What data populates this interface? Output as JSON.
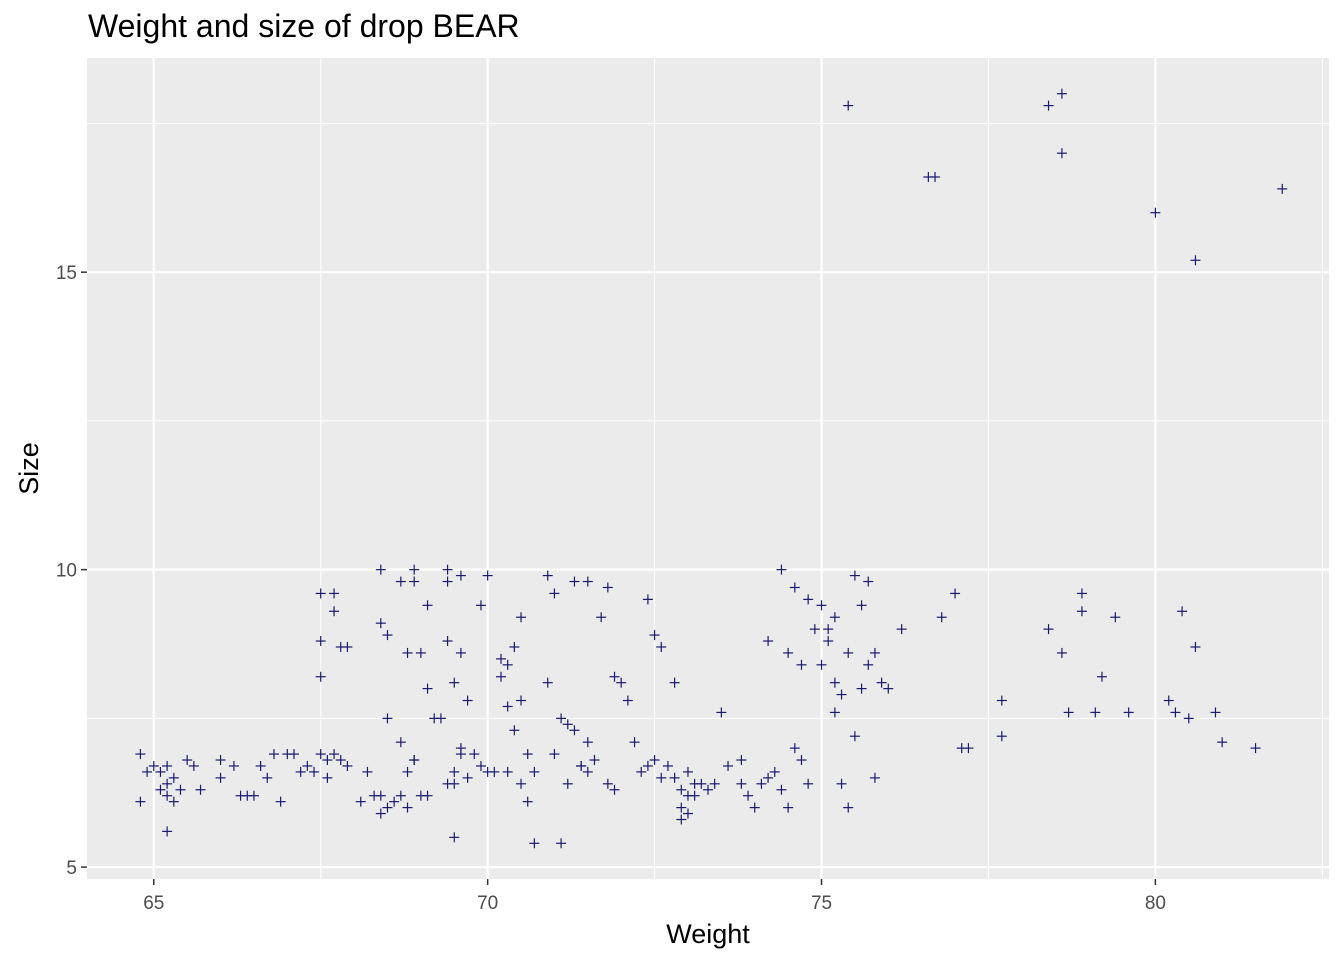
{
  "chart_data": {
    "type": "scatter",
    "title": "Weight and size of drop BEAR",
    "xlabel": "Weight",
    "ylabel": "Size",
    "xlim": [
      64.0,
      82.6
    ],
    "ylim": [
      4.8,
      18.6
    ],
    "xticks": [
      65,
      70,
      75,
      80
    ],
    "yticks": [
      5,
      10,
      15
    ],
    "xtick_labels": [
      "65",
      "70",
      "75",
      "80"
    ],
    "ytick_labels": [
      "5",
      "10",
      "15"
    ],
    "grid": true,
    "marker": "plus",
    "colors": {
      "panel": "#ebebeb",
      "grid": "#ffffff",
      "point": "#1a1a6e",
      "tick": "#4d4d4d"
    },
    "series": [
      {
        "points": [
          [
            64.8,
            6.9
          ],
          [
            64.9,
            6.6
          ],
          [
            65.0,
            6.7
          ],
          [
            65.1,
            6.3
          ],
          [
            64.8,
            6.1
          ],
          [
            65.2,
            6.7
          ],
          [
            65.3,
            6.5
          ],
          [
            65.2,
            6.4
          ],
          [
            65.4,
            6.3
          ],
          [
            65.2,
            6.2
          ],
          [
            65.5,
            6.8
          ],
          [
            65.3,
            6.1
          ],
          [
            65.6,
            6.7
          ],
          [
            65.7,
            6.3
          ],
          [
            65.1,
            6.6
          ],
          [
            65.2,
            5.6
          ],
          [
            66.0,
            6.8
          ],
          [
            66.2,
            6.7
          ],
          [
            66.0,
            6.5
          ],
          [
            66.3,
            6.2
          ],
          [
            66.4,
            6.2
          ],
          [
            66.5,
            6.2
          ],
          [
            66.6,
            6.7
          ],
          [
            66.7,
            6.5
          ],
          [
            66.8,
            6.9
          ],
          [
            66.9,
            6.1
          ],
          [
            67.0,
            6.9
          ],
          [
            67.1,
            6.9
          ],
          [
            67.2,
            6.6
          ],
          [
            67.3,
            6.7
          ],
          [
            67.4,
            6.6
          ],
          [
            67.5,
            6.9
          ],
          [
            67.6,
            6.8
          ],
          [
            67.7,
            6.9
          ],
          [
            67.8,
            6.8
          ],
          [
            67.9,
            6.7
          ],
          [
            67.5,
            9.6
          ],
          [
            67.7,
            9.6
          ],
          [
            67.5,
            8.8
          ],
          [
            67.8,
            8.7
          ],
          [
            67.5,
            8.2
          ],
          [
            67.7,
            9.3
          ],
          [
            67.9,
            8.7
          ],
          [
            67.6,
            6.5
          ],
          [
            68.1,
            6.1
          ],
          [
            68.2,
            6.6
          ],
          [
            68.3,
            6.2
          ],
          [
            68.4,
            6.2
          ],
          [
            68.5,
            6.0
          ],
          [
            68.4,
            5.9
          ],
          [
            68.6,
            6.1
          ],
          [
            68.7,
            6.2
          ],
          [
            68.8,
            6.0
          ],
          [
            68.9,
            6.8
          ],
          [
            68.4,
            10.0
          ],
          [
            68.4,
            9.1
          ],
          [
            68.5,
            8.9
          ],
          [
            68.7,
            9.8
          ],
          [
            68.9,
            10.0
          ],
          [
            68.9,
            9.8
          ],
          [
            69.0,
            8.6
          ],
          [
            68.8,
            8.6
          ],
          [
            69.1,
            9.4
          ],
          [
            69.1,
            8.0
          ],
          [
            68.5,
            7.5
          ],
          [
            68.7,
            7.1
          ],
          [
            68.8,
            6.6
          ],
          [
            68.9,
            6.8
          ],
          [
            69.0,
            6.2
          ],
          [
            69.1,
            6.2
          ],
          [
            69.2,
            7.5
          ],
          [
            69.3,
            7.5
          ],
          [
            69.4,
            6.4
          ],
          [
            69.5,
            6.4
          ],
          [
            69.6,
            6.9
          ],
          [
            69.4,
            10.0
          ],
          [
            69.4,
            9.8
          ],
          [
            69.6,
            9.9
          ],
          [
            69.4,
            8.8
          ],
          [
            69.6,
            8.6
          ],
          [
            69.5,
            8.1
          ],
          [
            69.5,
            6.6
          ],
          [
            69.6,
            7.0
          ],
          [
            69.5,
            5.5
          ],
          [
            69.7,
            6.5
          ],
          [
            69.8,
            6.9
          ],
          [
            69.9,
            9.4
          ],
          [
            70.0,
            9.9
          ],
          [
            69.7,
            7.8
          ],
          [
            69.9,
            6.7
          ],
          [
            70.0,
            6.6
          ],
          [
            70.1,
            6.6
          ],
          [
            70.2,
            8.2
          ],
          [
            70.2,
            8.5
          ],
          [
            70.3,
            8.4
          ],
          [
            70.4,
            8.7
          ],
          [
            70.3,
            7.7
          ],
          [
            70.5,
            7.8
          ],
          [
            70.4,
            7.3
          ],
          [
            70.6,
            6.9
          ],
          [
            70.5,
            6.4
          ],
          [
            70.3,
            6.6
          ],
          [
            70.7,
            6.6
          ],
          [
            70.6,
            6.1
          ],
          [
            70.7,
            5.4
          ],
          [
            70.5,
            9.2
          ],
          [
            70.9,
            9.9
          ],
          [
            71.0,
            9.6
          ],
          [
            71.3,
            9.8
          ],
          [
            71.5,
            9.8
          ],
          [
            71.8,
            9.7
          ],
          [
            70.9,
            8.1
          ],
          [
            71.1,
            7.5
          ],
          [
            71.2,
            7.4
          ],
          [
            71.3,
            7.3
          ],
          [
            71.5,
            7.1
          ],
          [
            71.0,
            6.9
          ],
          [
            71.2,
            6.4
          ],
          [
            71.4,
            6.7
          ],
          [
            71.1,
            5.4
          ],
          [
            71.4,
            6.7
          ],
          [
            71.5,
            6.6
          ],
          [
            71.6,
            6.8
          ],
          [
            71.8,
            6.4
          ],
          [
            71.9,
            6.3
          ],
          [
            71.7,
            9.2
          ],
          [
            71.9,
            8.2
          ],
          [
            72.0,
            8.1
          ],
          [
            72.1,
            7.8
          ],
          [
            72.2,
            7.1
          ],
          [
            72.3,
            6.6
          ],
          [
            72.4,
            6.7
          ],
          [
            72.5,
            6.8
          ],
          [
            72.6,
            6.5
          ],
          [
            72.7,
            6.7
          ],
          [
            72.8,
            6.5
          ],
          [
            72.9,
            6.3
          ],
          [
            73.0,
            6.2
          ],
          [
            73.1,
            6.2
          ],
          [
            73.2,
            6.4
          ],
          [
            72.4,
            9.5
          ],
          [
            72.5,
            8.9
          ],
          [
            72.6,
            8.7
          ],
          [
            72.8,
            8.1
          ],
          [
            72.9,
            6.0
          ],
          [
            73.0,
            6.6
          ],
          [
            73.1,
            6.4
          ],
          [
            72.9,
            5.8
          ],
          [
            73.0,
            5.9
          ],
          [
            73.3,
            6.3
          ],
          [
            73.4,
            6.4
          ],
          [
            73.5,
            7.6
          ],
          [
            73.6,
            6.7
          ],
          [
            73.8,
            6.8
          ],
          [
            73.8,
            6.4
          ],
          [
            73.9,
            6.2
          ],
          [
            74.0,
            6.0
          ],
          [
            74.1,
            6.4
          ],
          [
            74.2,
            6.5
          ],
          [
            74.3,
            6.6
          ],
          [
            74.4,
            6.3
          ],
          [
            74.5,
            6.0
          ],
          [
            74.6,
            7.0
          ],
          [
            74.7,
            6.8
          ],
          [
            74.8,
            6.4
          ],
          [
            74.4,
            10.0
          ],
          [
            74.6,
            9.7
          ],
          [
            74.8,
            9.5
          ],
          [
            74.7,
            8.4
          ],
          [
            74.2,
            8.8
          ],
          [
            74.5,
            8.6
          ],
          [
            74.9,
            9.0
          ],
          [
            75.0,
            9.4
          ],
          [
            75.1,
            9.0
          ],
          [
            75.2,
            9.2
          ],
          [
            75.1,
            8.8
          ],
          [
            75.0,
            8.4
          ],
          [
            75.2,
            7.6
          ],
          [
            75.3,
            6.4
          ],
          [
            75.4,
            6.0
          ],
          [
            75.2,
            8.1
          ],
          [
            75.3,
            7.9
          ],
          [
            75.4,
            8.6
          ],
          [
            75.5,
            7.2
          ],
          [
            75.5,
            9.9
          ],
          [
            75.6,
            9.4
          ],
          [
            75.7,
            9.8
          ],
          [
            75.6,
            8.0
          ],
          [
            75.8,
            6.5
          ],
          [
            75.9,
            8.1
          ],
          [
            75.4,
            17.8
          ],
          [
            76.6,
            16.6
          ],
          [
            76.7,
            16.6
          ],
          [
            78.4,
            17.8
          ],
          [
            78.6,
            18.0
          ],
          [
            78.6,
            17.0
          ],
          [
            80.0,
            16.0
          ],
          [
            80.6,
            15.2
          ],
          [
            81.9,
            16.4
          ],
          [
            75.7,
            8.4
          ],
          [
            75.8,
            8.6
          ],
          [
            76.0,
            8.0
          ],
          [
            76.2,
            9.0
          ],
          [
            76.8,
            9.2
          ],
          [
            77.0,
            9.6
          ],
          [
            77.1,
            7.0
          ],
          [
            77.2,
            7.0
          ],
          [
            77.7,
            7.8
          ],
          [
            77.7,
            7.2
          ],
          [
            78.4,
            9.0
          ],
          [
            78.6,
            8.6
          ],
          [
            78.7,
            7.6
          ],
          [
            78.9,
            9.6
          ],
          [
            78.9,
            9.3
          ],
          [
            79.1,
            7.6
          ],
          [
            79.2,
            8.2
          ],
          [
            79.4,
            9.2
          ],
          [
            79.6,
            7.6
          ],
          [
            80.2,
            7.8
          ],
          [
            80.3,
            7.6
          ],
          [
            80.4,
            9.3
          ],
          [
            80.6,
            8.7
          ],
          [
            80.5,
            7.5
          ],
          [
            80.9,
            7.6
          ],
          [
            81.0,
            7.1
          ],
          [
            81.5,
            7.0
          ]
        ]
      }
    ]
  }
}
